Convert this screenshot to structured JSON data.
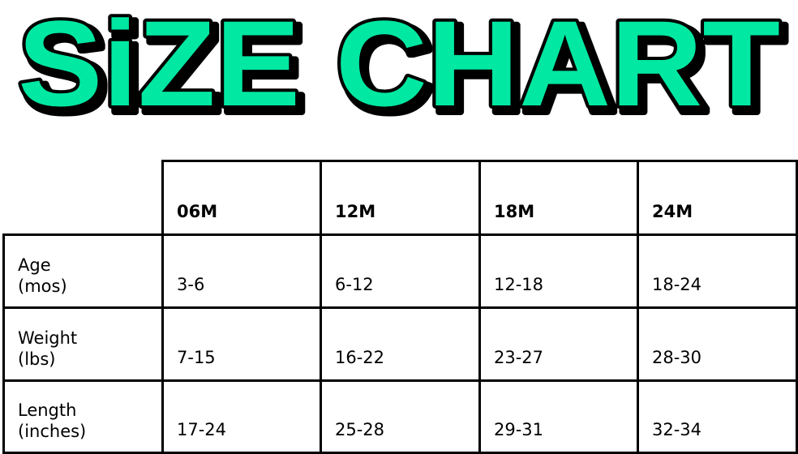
{
  "title": "SiZE CHART",
  "colors": {
    "title_fill": "#00e8a2",
    "title_outline": "#000000",
    "grid": "#000000"
  },
  "table": {
    "columns": [
      "06M",
      "12M",
      "18M",
      "24M"
    ],
    "rows": [
      {
        "label_line1": "Age",
        "label_line2": "(mos)",
        "values": [
          "3-6",
          "6-12",
          "12-18",
          "18-24"
        ]
      },
      {
        "label_line1": "Weight",
        "label_line2": "(lbs)",
        "values": [
          "7-15",
          "16-22",
          "23-27",
          "28-30"
        ]
      },
      {
        "label_line1": "Length",
        "label_line2": "(inches)",
        "values": [
          "17-24",
          "25-28",
          "29-31",
          "32-34"
        ]
      }
    ]
  }
}
